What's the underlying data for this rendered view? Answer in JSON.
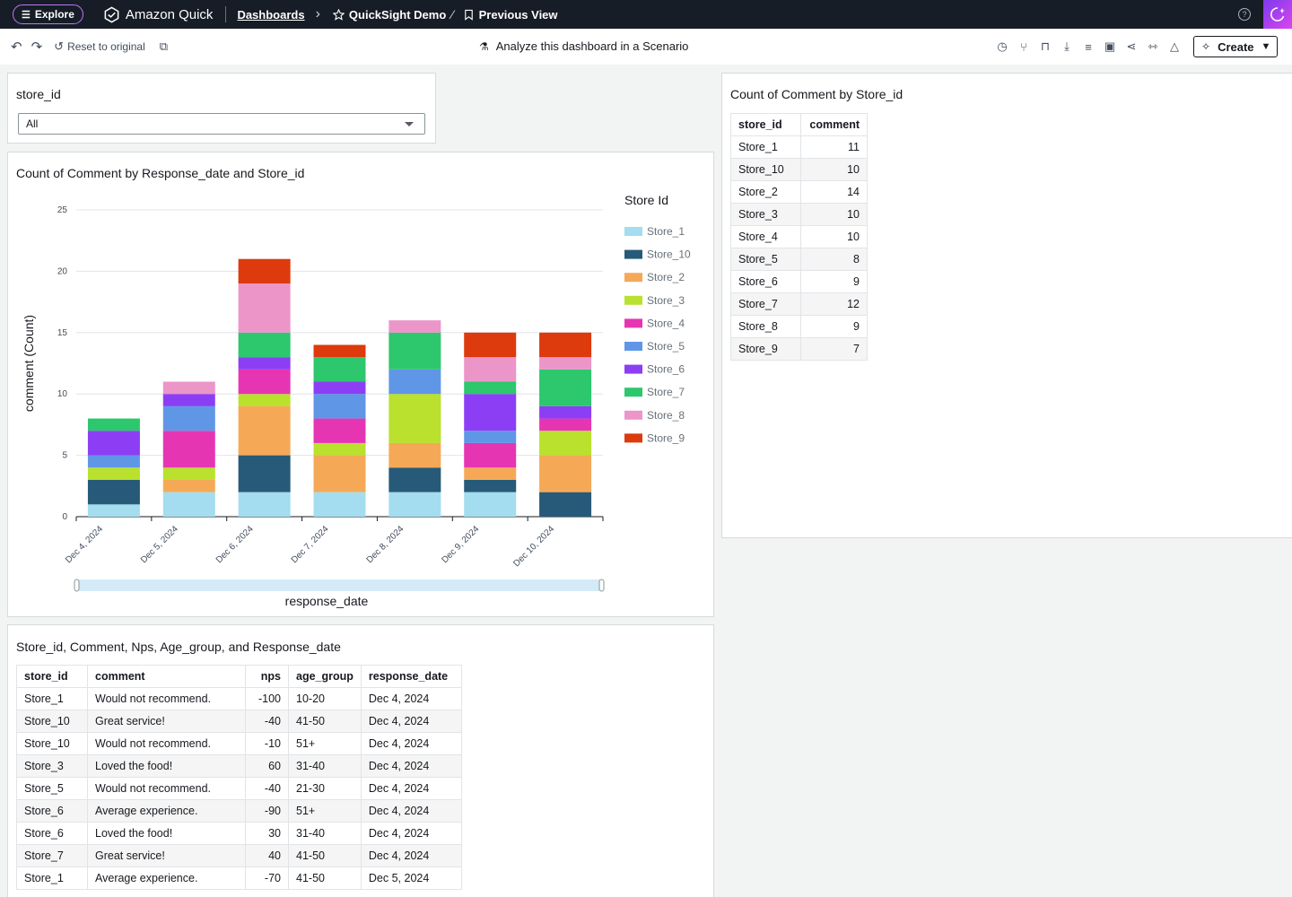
{
  "topbar": {
    "explore_label": "Explore",
    "app_name": "Amazon Quick",
    "dashboards_label": "Dashboards",
    "dashboard_name": "QuickSight Demo",
    "previous_view_label": "Previous View",
    "help_glyph": "?"
  },
  "toolbar": {
    "reset_label": "Reset to original",
    "analyze_label": "Analyze this dashboard in a Scenario",
    "create_label": "Create"
  },
  "filter": {
    "title": "store_id",
    "value": "All"
  },
  "chart_data": {
    "type": "bar",
    "stacked": true,
    "title": "Count of Comment by Response_date and Store_id",
    "xlabel": "response_date",
    "ylabel": "comment (Count)",
    "legend_title": "Store Id",
    "legend_position": "right",
    "ylim": [
      0,
      25
    ],
    "yticks": [
      0,
      5,
      10,
      15,
      20,
      25
    ],
    "grid": true,
    "categories": [
      "Dec 4, 2024",
      "Dec 5, 2024",
      "Dec 6, 2024",
      "Dec 7, 2024",
      "Dec 8, 2024",
      "Dec 9, 2024",
      "Dec 10, 2024"
    ],
    "series": [
      {
        "name": "Store_1",
        "color": "#a3ddef",
        "values": [
          1,
          2,
          2,
          2,
          2,
          2,
          0
        ]
      },
      {
        "name": "Store_10",
        "color": "#275a78",
        "values": [
          2,
          0,
          3,
          0,
          2,
          1,
          2
        ]
      },
      {
        "name": "Store_2",
        "color": "#f5a957",
        "values": [
          0,
          1,
          4,
          3,
          2,
          1,
          3
        ]
      },
      {
        "name": "Store_3",
        "color": "#b9e12e",
        "values": [
          1,
          1,
          1,
          1,
          4,
          0,
          2
        ]
      },
      {
        "name": "Store_4",
        "color": "#e635b3",
        "values": [
          0,
          3,
          2,
          2,
          0,
          2,
          1
        ]
      },
      {
        "name": "Store_5",
        "color": "#6096e6",
        "values": [
          1,
          2,
          0,
          2,
          2,
          1,
          0
        ]
      },
      {
        "name": "Store_6",
        "color": "#8c3ef5",
        "values": [
          2,
          1,
          1,
          1,
          0,
          3,
          1
        ]
      },
      {
        "name": "Store_7",
        "color": "#2dc76d",
        "values": [
          1,
          0,
          2,
          2,
          3,
          1,
          3
        ]
      },
      {
        "name": "Store_8",
        "color": "#ec95c9",
        "values": [
          0,
          1,
          4,
          0,
          1,
          2,
          1
        ]
      },
      {
        "name": "Store_9",
        "color": "#dd3a0d",
        "values": [
          0,
          0,
          2,
          1,
          0,
          2,
          2
        ]
      }
    ]
  },
  "summary_table": {
    "title": "Count of Comment by Store_id",
    "columns": [
      "store_id",
      "comment"
    ],
    "rows": [
      [
        "Store_1",
        "11"
      ],
      [
        "Store_10",
        "10"
      ],
      [
        "Store_2",
        "14"
      ],
      [
        "Store_3",
        "10"
      ],
      [
        "Store_4",
        "10"
      ],
      [
        "Store_5",
        "8"
      ],
      [
        "Store_6",
        "9"
      ],
      [
        "Store_7",
        "12"
      ],
      [
        "Store_8",
        "9"
      ],
      [
        "Store_9",
        "7"
      ]
    ]
  },
  "detail_table": {
    "title": "Store_id, Comment, Nps, Age_group, and Response_date",
    "columns": [
      "store_id",
      "comment",
      "nps",
      "age_group",
      "response_date"
    ],
    "rows": [
      [
        "Store_1",
        "Would not recommend.",
        "-100",
        "10-20",
        "Dec 4, 2024"
      ],
      [
        "Store_10",
        "Great service!",
        "-40",
        "41-50",
        "Dec 4, 2024"
      ],
      [
        "Store_10",
        "Would not recommend.",
        "-10",
        "51+",
        "Dec 4, 2024"
      ],
      [
        "Store_3",
        "Loved the food!",
        "60",
        "31-40",
        "Dec 4, 2024"
      ],
      [
        "Store_5",
        "Would not recommend.",
        "-40",
        "21-30",
        "Dec 4, 2024"
      ],
      [
        "Store_6",
        "Average experience.",
        "-90",
        "51+",
        "Dec 4, 2024"
      ],
      [
        "Store_6",
        "Loved the food!",
        "30",
        "31-40",
        "Dec 4, 2024"
      ],
      [
        "Store_7",
        "Great service!",
        "40",
        "41-50",
        "Dec 4, 2024"
      ],
      [
        "Store_1",
        "Average experience.",
        "-70",
        "41-50",
        "Dec 5, 2024"
      ]
    ]
  }
}
